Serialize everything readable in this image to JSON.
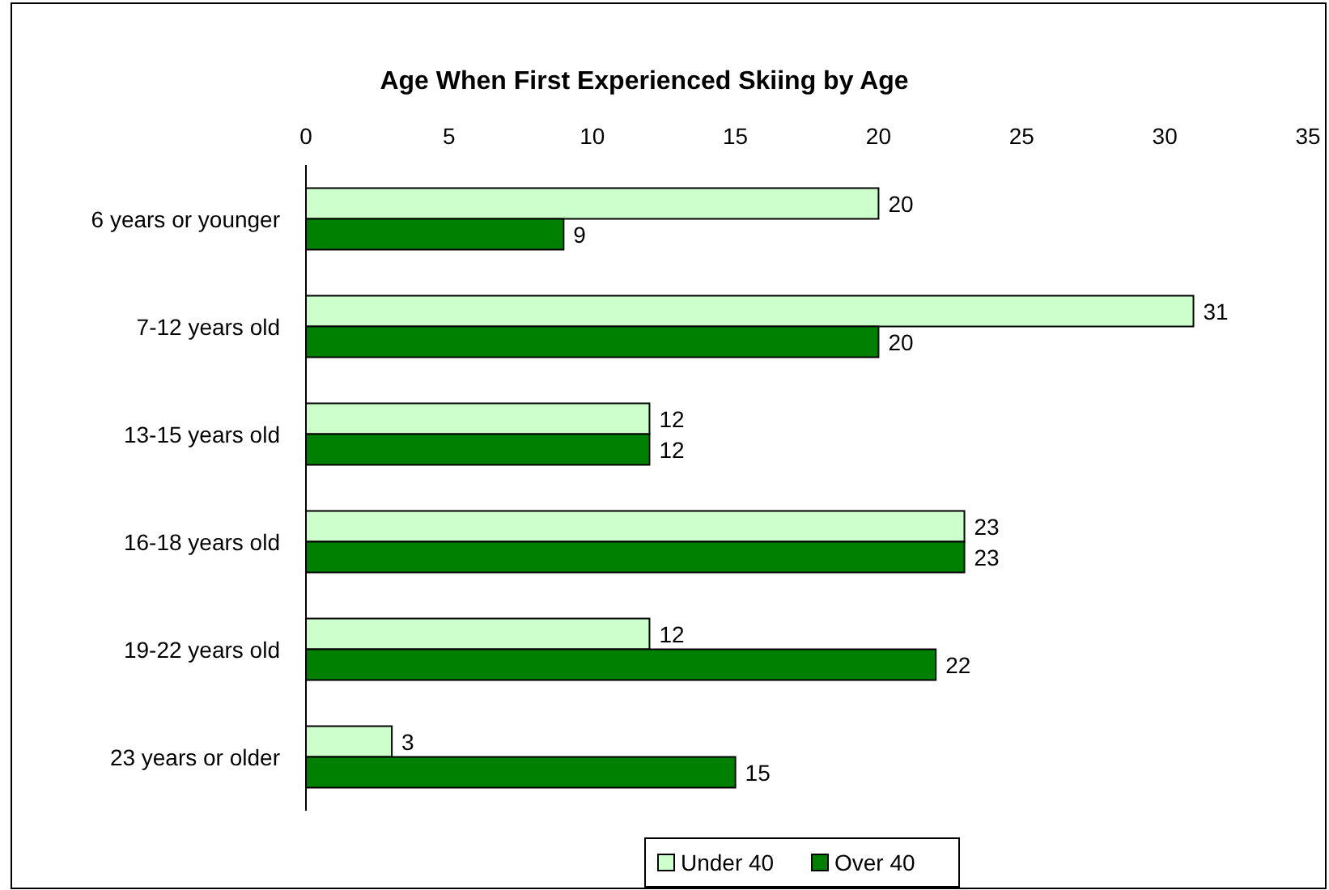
{
  "chart_data": {
    "type": "bar",
    "orientation": "horizontal",
    "title": "Age When First Experienced Skiing by Age",
    "categories": [
      "6 years or younger",
      "7-12 years old",
      "13-15 years old",
      "16-18 years old",
      "19-22 years old",
      "23 years or older"
    ],
    "series": [
      {
        "name": "Under 40",
        "color": "#ccffcc",
        "values": [
          20,
          31,
          12,
          23,
          12,
          3
        ]
      },
      {
        "name": "Over 40",
        "color": "#008000",
        "values": [
          9,
          20,
          12,
          23,
          22,
          15
        ]
      }
    ],
    "xlim": [
      0,
      35
    ],
    "xticks": [
      0,
      5,
      10,
      15,
      20,
      25,
      30,
      35
    ],
    "data_labels": true,
    "grid": false,
    "legend": "bottom"
  }
}
